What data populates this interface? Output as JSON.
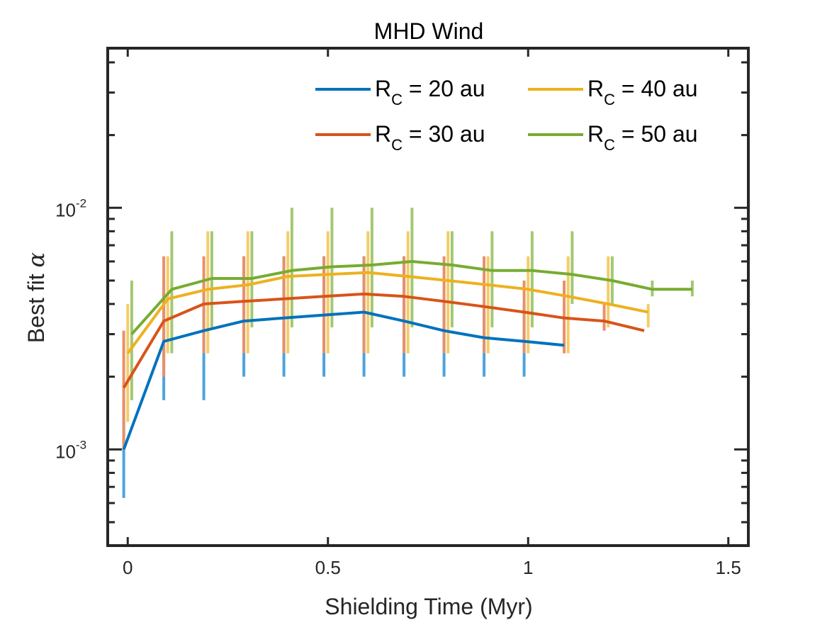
{
  "chart_data": {
    "type": "line",
    "title": "MHD Wind",
    "xlabel": "Shielding Time (Myr)",
    "ylabel_text": "Best fit ",
    "ylabel_symbol": "α",
    "xlim": [
      -0.05,
      1.55
    ],
    "ylim": [
      0.0004,
      0.04
    ],
    "yscale": "log",
    "x_ticks": [
      0,
      0.5,
      1,
      1.5
    ],
    "x_tick_labels": [
      "0",
      "0.5",
      "1",
      "1.5"
    ],
    "y_ticks": [
      {
        "value": 0.001,
        "base": "10",
        "exp": "-3"
      },
      {
        "value": 0.01,
        "base": "10",
        "exp": "-2"
      }
    ],
    "grid": false,
    "legend": {
      "placement": "top-right",
      "columns": 2,
      "prefix": "R",
      "subscript": "C",
      "entries": [
        {
          "label": " = 20 au",
          "color": "#0072BD"
        },
        {
          "label": " = 40 au",
          "color": "#EDB120"
        },
        {
          "label": " = 30 au",
          "color": "#D95319"
        },
        {
          "label": " = 50 au",
          "color": "#77AC30"
        }
      ]
    },
    "series": [
      {
        "name": "R_C = 20 au",
        "color": "#0072BD",
        "errcolor": "#4DA3DE",
        "x": [
          -0.01,
          0.09,
          0.19,
          0.29,
          0.39,
          0.49,
          0.59,
          0.69,
          0.79,
          0.89,
          0.99,
          1.09
        ],
        "y": [
          0.001,
          0.0028,
          0.0031,
          0.0034,
          0.0035,
          0.0036,
          0.0037,
          0.0034,
          0.0031,
          0.0029,
          0.0028,
          0.0027
        ],
        "lo": [
          0.00063,
          0.0016,
          0.0016,
          0.002,
          0.002,
          0.002,
          0.002,
          0.002,
          0.002,
          0.002,
          0.002,
          0.0026
        ],
        "hi": [
          0.0016,
          0.005,
          0.005,
          0.0063,
          0.0063,
          0.0063,
          0.0063,
          0.0063,
          0.004,
          0.004,
          0.004,
          0.0028
        ]
      },
      {
        "name": "R_C = 30 au",
        "color": "#D95319",
        "errcolor": "#E8906A",
        "x": [
          -0.01,
          0.09,
          0.19,
          0.29,
          0.39,
          0.49,
          0.59,
          0.69,
          0.79,
          0.89,
          0.99,
          1.09,
          1.19,
          1.29
        ],
        "y": [
          0.0018,
          0.0034,
          0.004,
          0.0041,
          0.0042,
          0.0043,
          0.0044,
          0.0043,
          0.0041,
          0.0039,
          0.0037,
          0.0035,
          0.0034,
          0.0031
        ],
        "lo": [
          0.001,
          0.002,
          0.0025,
          0.0025,
          0.0025,
          0.0025,
          0.0025,
          0.0025,
          0.0025,
          0.0025,
          0.0025,
          0.0025,
          0.0031,
          0.0031
        ],
        "hi": [
          0.0031,
          0.0063,
          0.0063,
          0.0063,
          0.0063,
          0.0063,
          0.0063,
          0.0063,
          0.0063,
          0.0063,
          0.005,
          0.005,
          0.004,
          0.0031
        ]
      },
      {
        "name": "R_C = 40 au",
        "color": "#EDB120",
        "errcolor": "#F3CD6B",
        "x": [
          0.0,
          0.1,
          0.2,
          0.3,
          0.4,
          0.5,
          0.6,
          0.7,
          0.8,
          0.9,
          1.0,
          1.1,
          1.2,
          1.3
        ],
        "y": [
          0.0025,
          0.0042,
          0.0046,
          0.0048,
          0.0052,
          0.0053,
          0.0054,
          0.0052,
          0.005,
          0.0048,
          0.0046,
          0.0043,
          0.004,
          0.0037
        ],
        "lo": [
          0.0013,
          0.0025,
          0.0025,
          0.0025,
          0.0025,
          0.0025,
          0.0025,
          0.0025,
          0.0025,
          0.0025,
          0.0025,
          0.0025,
          0.0032,
          0.0032
        ],
        "hi": [
          0.004,
          0.0063,
          0.008,
          0.008,
          0.008,
          0.008,
          0.008,
          0.008,
          0.008,
          0.0063,
          0.0063,
          0.0063,
          0.0063,
          0.004
        ]
      },
      {
        "name": "R_C = 50 au",
        "color": "#77AC30",
        "errcolor": "#A3C873",
        "x": [
          0.01,
          0.11,
          0.21,
          0.31,
          0.41,
          0.51,
          0.61,
          0.71,
          0.81,
          0.91,
          1.01,
          1.11,
          1.21,
          1.31,
          1.41
        ],
        "y": [
          0.003,
          0.0046,
          0.0051,
          0.0051,
          0.0055,
          0.0057,
          0.0058,
          0.006,
          0.0058,
          0.0055,
          0.0055,
          0.0053,
          0.005,
          0.0046,
          0.0046
        ],
        "lo": [
          0.0016,
          0.0025,
          0.0032,
          0.0032,
          0.0032,
          0.0032,
          0.0032,
          0.0032,
          0.0032,
          0.0032,
          0.0032,
          0.004,
          0.004,
          0.0043,
          0.0043
        ],
        "hi": [
          0.005,
          0.008,
          0.008,
          0.008,
          0.01,
          0.01,
          0.01,
          0.01,
          0.008,
          0.008,
          0.008,
          0.008,
          0.0063,
          0.005,
          0.005
        ]
      }
    ]
  }
}
